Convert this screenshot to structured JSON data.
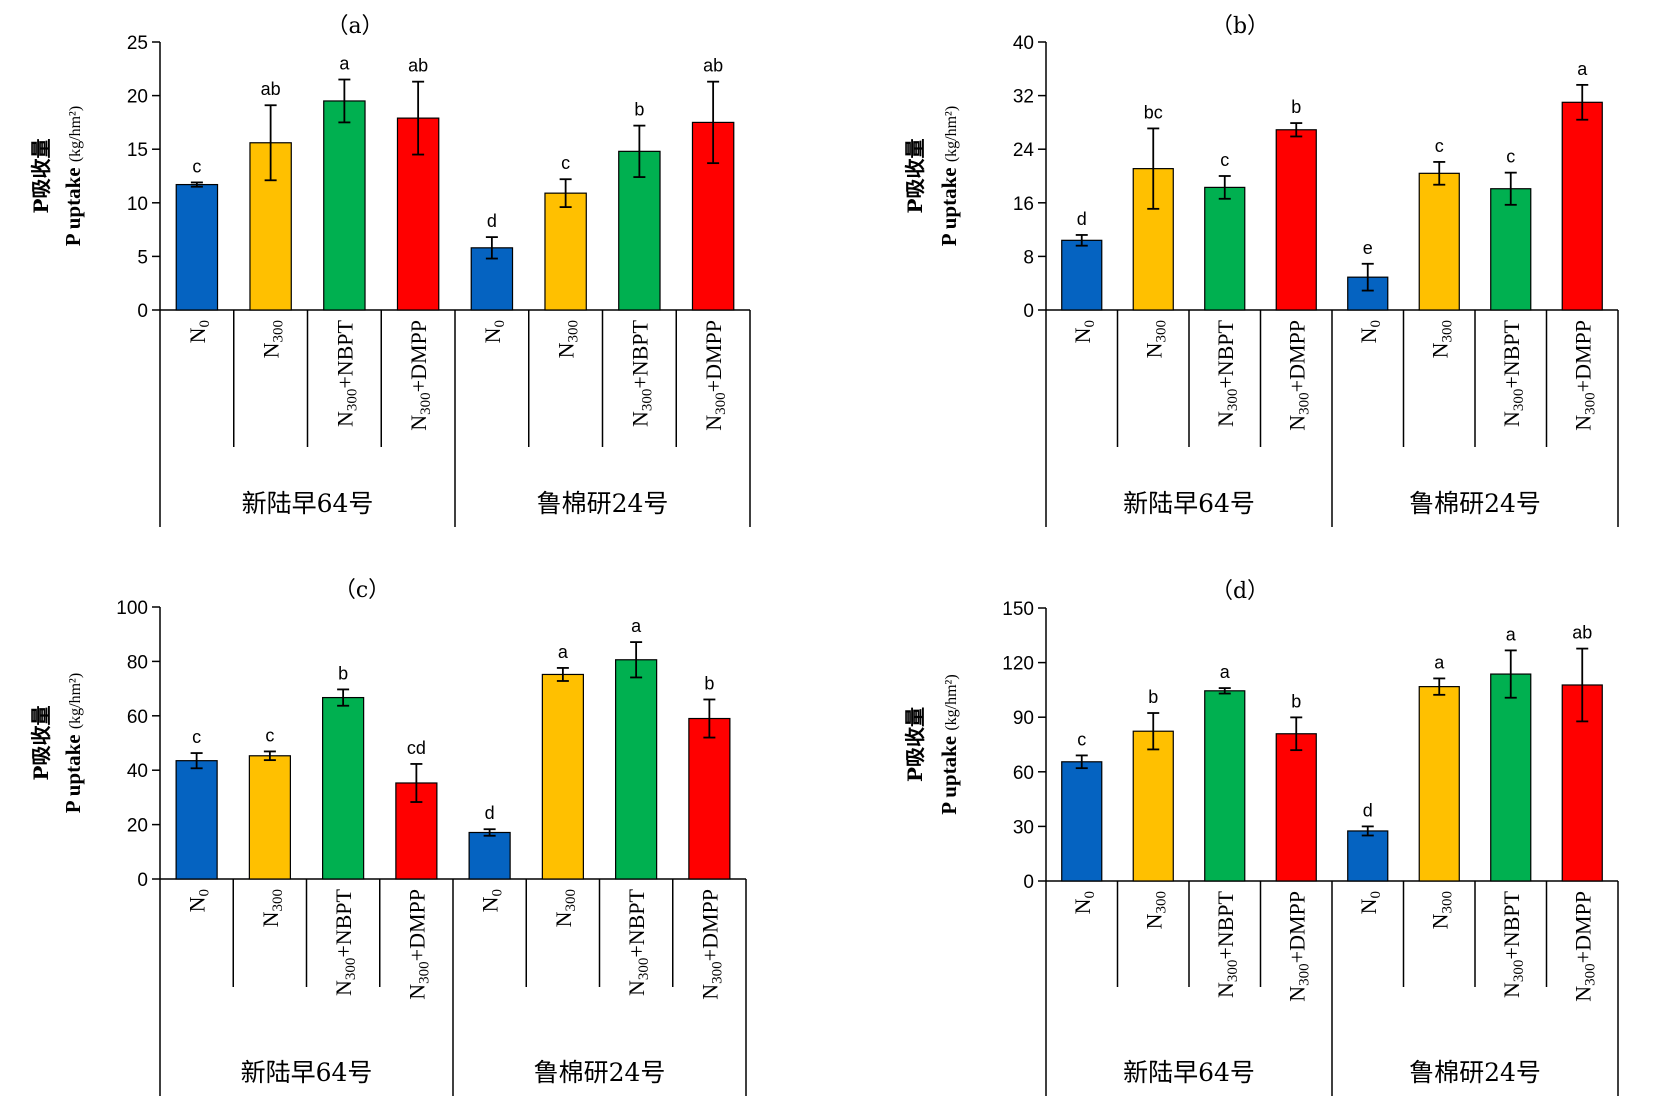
{
  "colors": {
    "blue": "#0563C1",
    "yellow": "#FFC000",
    "green": "#00B050",
    "red": "#FF0000"
  },
  "chart_data": [
    {
      "type": "bar",
      "title": "（a）",
      "ylabel_cn": "P吸收量",
      "ylabel_en": "P uptake",
      "ylabel_unit": "(kg/hm²)",
      "ylim": [
        0,
        25
      ],
      "yticks": [
        0,
        5,
        10,
        15,
        20,
        25
      ],
      "groups": [
        "新陆早64号",
        "鲁棉研24号"
      ],
      "categories": [
        "N0",
        "N300",
        "N300+NBPT",
        "N300+DMPP",
        "N0",
        "N300",
        "N300+NBPT",
        "N300+DMPP"
      ],
      "values": [
        11.7,
        15.6,
        19.5,
        17.9,
        5.8,
        10.9,
        14.8,
        17.5
      ],
      "errors": [
        0.2,
        3.5,
        2.0,
        3.4,
        1.0,
        1.3,
        2.4,
        3.8
      ],
      "letters": [
        "c",
        "ab",
        "a",
        "ab",
        "d",
        "c",
        "b",
        "ab"
      ]
    },
    {
      "type": "bar",
      "title": "（b）",
      "ylabel_cn": "P吸收量",
      "ylabel_en": "P uptake",
      "ylabel_unit": "(kg/hm²)",
      "ylim": [
        0,
        40
      ],
      "yticks": [
        0,
        8,
        16,
        24,
        32,
        40
      ],
      "groups": [
        "新陆早64号",
        "鲁棉研24号"
      ],
      "categories": [
        "N0",
        "N300",
        "N300+NBPT",
        "N300+DMPP",
        "N0",
        "N300",
        "N300+NBPT",
        "N300+DMPP"
      ],
      "values": [
        10.4,
        21.1,
        18.3,
        26.9,
        4.9,
        20.4,
        18.1,
        31.0
      ],
      "errors": [
        0.8,
        6.0,
        1.7,
        1.0,
        2.0,
        1.7,
        2.4,
        2.6
      ],
      "letters": [
        "d",
        "bc",
        "c",
        "b",
        "e",
        "c",
        "c",
        "a"
      ]
    },
    {
      "type": "bar",
      "title": "（c）",
      "ylabel_cn": "P吸收量",
      "ylabel_en": "P uptake",
      "ylabel_unit": "(kg/hm²)",
      "ylim": [
        0,
        100
      ],
      "yticks": [
        0,
        20,
        40,
        60,
        80,
        100
      ],
      "groups": [
        "新陆早64号",
        "鲁棉研24号"
      ],
      "categories": [
        "N0",
        "N300",
        "N300+NBPT",
        "N300+DMPP",
        "N0",
        "N300",
        "N300+NBPT",
        "N300+DMPP"
      ],
      "values": [
        43.5,
        45.3,
        66.7,
        35.3,
        17.1,
        75.2,
        80.6,
        59.0
      ],
      "errors": [
        2.8,
        1.6,
        3.0,
        7.0,
        1.2,
        2.4,
        6.5,
        7.0
      ],
      "letters": [
        "c",
        "c",
        "b",
        "cd",
        "d",
        "a",
        "a",
        "b"
      ]
    },
    {
      "type": "bar",
      "title": "（d）",
      "ylabel_cn": "P吸收量",
      "ylabel_en": "P uptake",
      "ylabel_unit": "(kg/hm²)",
      "ylim": [
        0,
        150
      ],
      "yticks": [
        0,
        30,
        60,
        90,
        120,
        150
      ],
      "groups": [
        "新陆早64号",
        "鲁棉研24号"
      ],
      "categories": [
        "N0",
        "N300",
        "N300+NBPT",
        "N300+DMPP",
        "N0",
        "N300",
        "N300+NBPT",
        "N300+DMPP"
      ],
      "values": [
        65.5,
        82.3,
        104.5,
        80.9,
        27.5,
        106.8,
        113.7,
        107.7
      ],
      "errors": [
        3.5,
        10.0,
        1.5,
        9.0,
        2.5,
        4.5,
        13.0,
        20.0
      ],
      "letters": [
        "c",
        "b",
        "a",
        "b",
        "d",
        "a",
        "a",
        "ab"
      ]
    }
  ]
}
